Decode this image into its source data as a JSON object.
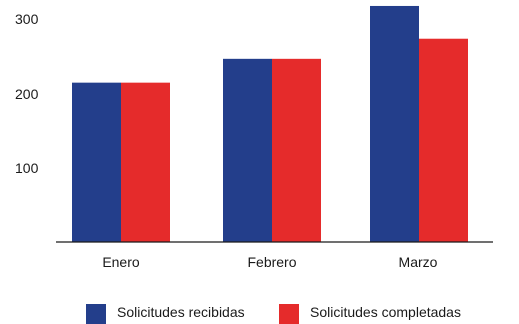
{
  "chart_data": {
    "type": "bar",
    "title": "",
    "xlabel": "",
    "ylabel": "",
    "categories": [
      "Enero",
      "Febrero",
      "Marzo"
    ],
    "series": [
      {
        "name": "Solicitudes recibidas",
        "color": "#233e8b",
        "values": [
          214,
          246,
          317
        ]
      },
      {
        "name": "Solicitudes completadas",
        "color": "#e52b2b",
        "values": [
          214,
          246,
          273
        ]
      }
    ],
    "y_ticks": [
      "100",
      "200",
      "300"
    ],
    "ylim": [
      0,
      330
    ],
    "grid": false,
    "legend_position": "bottom-center"
  }
}
